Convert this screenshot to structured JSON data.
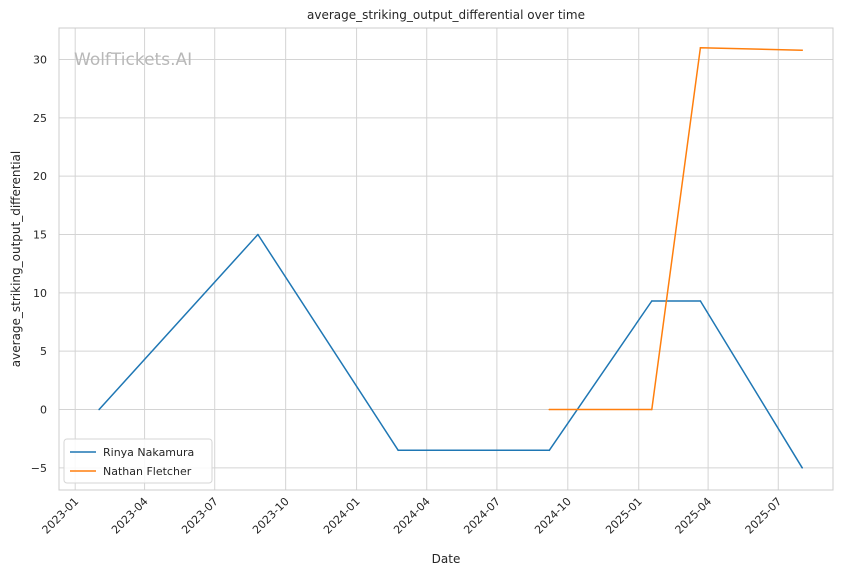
{
  "chart_data": {
    "type": "line",
    "title": "average_striking_output_differential over time",
    "xlabel": "Date",
    "ylabel": "average_striking_output_differential",
    "watermark": "WolfTickets.AI",
    "xlim": [
      "2022-12-11",
      "2025-09-10"
    ],
    "ylim": [
      -6.9,
      32.7
    ],
    "x_ticks": [
      "2023-01",
      "2023-04",
      "2023-07",
      "2023-10",
      "2024-01",
      "2024-04",
      "2024-07",
      "2024-10",
      "2025-01",
      "2025-04",
      "2025-07"
    ],
    "y_ticks": [
      -5,
      0,
      5,
      10,
      15,
      20,
      25,
      30
    ],
    "grid": true,
    "legend_position": "lower-left",
    "series": [
      {
        "name": "Rinya Nakamura",
        "color": "#1f77b4",
        "points": [
          {
            "x": "2023-02-01",
            "y": 0
          },
          {
            "x": "2023-08-26",
            "y": 15
          },
          {
            "x": "2024-02-24",
            "y": -3.5
          },
          {
            "x": "2024-09-07",
            "y": -3.5
          },
          {
            "x": "2025-01-18",
            "y": 9.3
          },
          {
            "x": "2025-03-22",
            "y": 9.3
          },
          {
            "x": "2025-08-01",
            "y": -5
          }
        ]
      },
      {
        "name": "Nathan Fletcher",
        "color": "#ff7f0e",
        "points": [
          {
            "x": "2024-09-07",
            "y": 0
          },
          {
            "x": "2025-01-18",
            "y": 0
          },
          {
            "x": "2025-03-22",
            "y": 31
          },
          {
            "x": "2025-08-01",
            "y": 30.8
          }
        ]
      }
    ]
  }
}
